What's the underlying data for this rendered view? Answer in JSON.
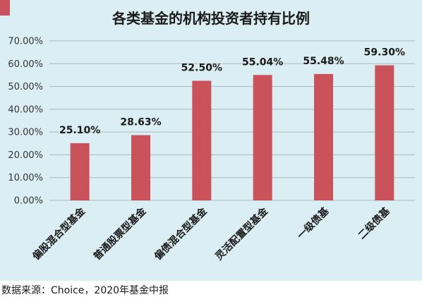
{
  "source_note": "数据来源：Choice，2020年基金中报",
  "colors": {
    "panel": "#dbeef4",
    "bar": "#c9525b",
    "grid": "#a9b9bf"
  },
  "chart_data": {
    "type": "bar",
    "title": "各类基金的机构投资者持有比例",
    "categories": [
      "偏股混合型基金",
      "普通股票型基金",
      "偏债混合型基金",
      "灵活配置型基金",
      "一级债基",
      "二级债基"
    ],
    "values": [
      25.1,
      28.63,
      52.5,
      55.04,
      55.48,
      59.3
    ],
    "value_labels": [
      "25.10%",
      "28.63%",
      "52.50%",
      "55.04%",
      "55.48%",
      "59.30%"
    ],
    "ylim": [
      0,
      70
    ],
    "yticks": [
      "0.00%",
      "10.00%",
      "20.00%",
      "30.00%",
      "40.00%",
      "50.00%",
      "60.00%",
      "70.00%"
    ],
    "grid": true,
    "legend": "none"
  }
}
